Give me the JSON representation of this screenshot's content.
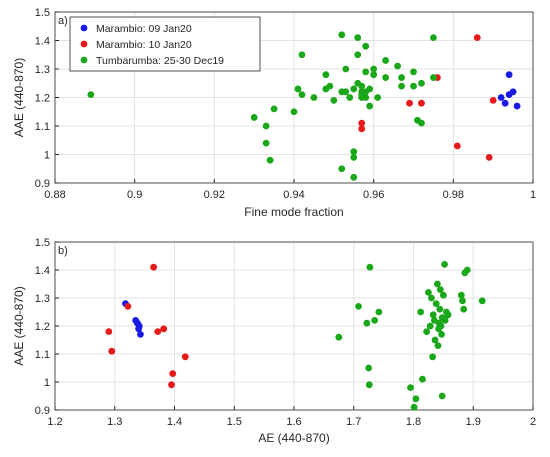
{
  "colors": {
    "blue": "#1a1ae6",
    "red": "#e61a1a",
    "green": "#1aa81a",
    "grid": "#e3e3e3",
    "axis": "#262626"
  },
  "chart_data": [
    {
      "type": "scatter",
      "panel_label": "a)",
      "xlabel": "Fine mode fraction",
      "ylabel": "AAE (440-870)",
      "xlim": [
        0.88,
        1.0
      ],
      "ylim": [
        0.9,
        1.5
      ],
      "xticks": [
        "0.88",
        "0.9",
        "0.92",
        "0.94",
        "0.96",
        "0.98",
        "1"
      ],
      "yticks": [
        "0.9",
        "1",
        "1.1",
        "1.2",
        "1.3",
        "1.4",
        "1.5"
      ],
      "grid": true,
      "legend": "top-left",
      "series": [
        {
          "name": "Marambio: 09 Jan20",
          "color_key": "blue",
          "points": [
            [
              0.992,
              1.2
            ],
            [
              0.993,
              1.18
            ],
            [
              0.994,
              1.28
            ],
            [
              0.994,
              1.21
            ],
            [
              0.995,
              1.22
            ],
            [
              0.996,
              1.17
            ]
          ]
        },
        {
          "name": "Marambio: 10 Jan20",
          "color_key": "red",
          "points": [
            [
              0.957,
              1.11
            ],
            [
              0.957,
              1.09
            ],
            [
              0.969,
              1.18
            ],
            [
              0.972,
              1.18
            ],
            [
              0.976,
              1.27
            ],
            [
              0.981,
              1.03
            ],
            [
              0.986,
              1.41
            ],
            [
              0.989,
              0.99
            ],
            [
              0.99,
              1.19
            ]
          ]
        },
        {
          "name": "Tumbarumba: 25-30 Dec19",
          "color_key": "green",
          "points": [
            [
              0.889,
              1.21
            ],
            [
              0.93,
              1.13
            ],
            [
              0.933,
              1.1
            ],
            [
              0.933,
              1.04
            ],
            [
              0.934,
              0.98
            ],
            [
              0.935,
              1.16
            ],
            [
              0.94,
              1.15
            ],
            [
              0.941,
              1.23
            ],
            [
              0.942,
              1.21
            ],
            [
              0.942,
              1.35
            ],
            [
              0.945,
              1.2
            ],
            [
              0.948,
              1.23
            ],
            [
              0.948,
              1.28
            ],
            [
              0.949,
              1.24
            ],
            [
              0.95,
              1.19
            ],
            [
              0.952,
              1.22
            ],
            [
              0.952,
              0.95
            ],
            [
              0.952,
              1.42
            ],
            [
              0.953,
              1.22
            ],
            [
              0.953,
              1.3
            ],
            [
              0.954,
              1.2
            ],
            [
              0.955,
              0.92
            ],
            [
              0.955,
              0.99
            ],
            [
              0.955,
              1.01
            ],
            [
              0.955,
              1.23
            ],
            [
              0.956,
              1.41
            ],
            [
              0.956,
              1.25
            ],
            [
              0.956,
              1.35
            ],
            [
              0.957,
              1.22
            ],
            [
              0.957,
              1.2
            ],
            [
              0.957,
              1.21
            ],
            [
              0.957,
              1.24
            ],
            [
              0.958,
              1.2
            ],
            [
              0.958,
              1.38
            ],
            [
              0.958,
              1.29
            ],
            [
              0.958,
              1.22
            ],
            [
              0.959,
              1.23
            ],
            [
              0.959,
              1.17
            ],
            [
              0.96,
              1.3
            ],
            [
              0.96,
              1.28
            ],
            [
              0.961,
              1.2
            ],
            [
              0.963,
              1.33
            ],
            [
              0.963,
              1.27
            ],
            [
              0.966,
              1.31
            ],
            [
              0.967,
              1.27
            ],
            [
              0.967,
              1.24
            ],
            [
              0.97,
              1.29
            ],
            [
              0.97,
              1.24
            ],
            [
              0.971,
              1.12
            ],
            [
              0.972,
              1.11
            ],
            [
              0.972,
              1.25
            ],
            [
              0.975,
              1.41
            ],
            [
              0.975,
              1.27
            ]
          ]
        }
      ]
    },
    {
      "type": "scatter",
      "panel_label": "b)",
      "xlabel": "AE (440-870)",
      "ylabel": "AAE (440-870)",
      "xlim": [
        1.2,
        2.0
      ],
      "ylim": [
        0.9,
        1.5
      ],
      "xticks": [
        "1.2",
        "1.3",
        "1.4",
        "1.5",
        "1.6",
        "1.7",
        "1.8",
        "1.9",
        "2"
      ],
      "yticks": [
        "0.9",
        "1",
        "1.1",
        "1.2",
        "1.3",
        "1.4",
        "1.5"
      ],
      "grid": true,
      "series": [
        {
          "name": "Marambio: 09 Jan20",
          "color_key": "blue",
          "points": [
            [
              1.318,
              1.28
            ],
            [
              1.335,
              1.22
            ],
            [
              1.338,
              1.21
            ],
            [
              1.341,
              1.2
            ],
            [
              1.343,
              1.17
            ],
            [
              1.34,
              1.19
            ]
          ]
        },
        {
          "name": "Marambio: 10 Jan20",
          "color_key": "red",
          "points": [
            [
              1.29,
              1.18
            ],
            [
              1.295,
              1.11
            ],
            [
              1.322,
              1.27
            ],
            [
              1.365,
              1.41
            ],
            [
              1.372,
              1.18
            ],
            [
              1.382,
              1.19
            ],
            [
              1.395,
              0.99
            ],
            [
              1.397,
              1.03
            ],
            [
              1.418,
              1.09
            ]
          ]
        },
        {
          "name": "Tumbarumba: 25-30 Dec19",
          "color_key": "green",
          "points": [
            [
              1.675,
              1.16
            ],
            [
              1.708,
              1.27
            ],
            [
              1.722,
              1.21
            ],
            [
              1.725,
              1.05
            ],
            [
              1.726,
              0.99
            ],
            [
              1.727,
              1.41
            ],
            [
              1.735,
              1.22
            ],
            [
              1.742,
              1.25
            ],
            [
              1.795,
              0.98
            ],
            [
              1.801,
              0.91
            ],
            [
              1.804,
              0.94
            ],
            [
              1.812,
              1.25
            ],
            [
              1.815,
              1.01
            ],
            [
              1.822,
              1.18
            ],
            [
              1.825,
              1.32
            ],
            [
              1.828,
              1.2
            ],
            [
              1.83,
              1.3
            ],
            [
              1.832,
              1.09
            ],
            [
              1.833,
              1.24
            ],
            [
              1.835,
              1.22
            ],
            [
              1.836,
              1.15
            ],
            [
              1.838,
              1.28
            ],
            [
              1.84,
              1.35
            ],
            [
              1.841,
              1.13
            ],
            [
              1.842,
              1.19
            ],
            [
              1.843,
              1.21
            ],
            [
              1.844,
              1.26
            ],
            [
              1.845,
              1.33
            ],
            [
              1.846,
              1.2
            ],
            [
              1.847,
              1.17
            ],
            [
              1.848,
              1.23
            ],
            [
              1.848,
              0.95
            ],
            [
              1.85,
              1.31
            ],
            [
              1.852,
              1.42
            ],
            [
              1.853,
              1.22
            ],
            [
              1.855,
              1.25
            ],
            [
              1.858,
              1.24
            ],
            [
              1.88,
              1.31
            ],
            [
              1.882,
              1.29
            ],
            [
              1.884,
              1.26
            ],
            [
              1.886,
              1.39
            ],
            [
              1.89,
              1.4
            ],
            [
              1.915,
              1.29
            ]
          ]
        }
      ]
    }
  ]
}
